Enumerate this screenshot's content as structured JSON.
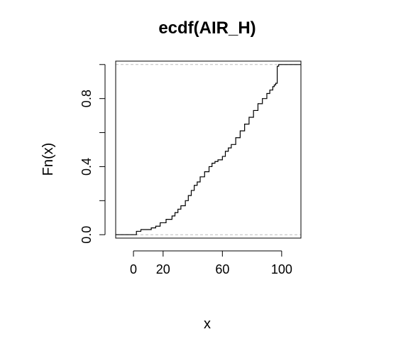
{
  "chart_data": {
    "type": "line",
    "title": "ecdf(AIR_H)",
    "xlabel": "x",
    "ylabel": "Fn(x)",
    "xlim": [
      -12,
      113
    ],
    "ylim": [
      -0.02,
      1.02
    ],
    "xticks": [
      0,
      20,
      60,
      100
    ],
    "xtick_labels": [
      "0",
      "20",
      "60",
      "100"
    ],
    "yticks": [
      0.0,
      0.2,
      0.4,
      0.6,
      0.8,
      1.0
    ],
    "ytick_labels": [
      "0.0",
      "",
      "0.4",
      "",
      "0.8",
      ""
    ],
    "hlines": [
      0,
      1
    ],
    "grid": false,
    "legend": "none",
    "line_color": "#000000",
    "hline_color": "#bebebe",
    "series": [
      {
        "x": [
          0,
          2,
          5,
          12,
          15,
          18,
          22,
          26,
          28,
          30,
          32,
          35,
          37,
          39,
          41,
          43,
          45,
          48,
          51,
          53,
          55,
          57,
          60,
          62,
          64,
          66,
          69,
          72,
          75,
          78,
          81,
          84,
          87,
          90,
          92,
          94,
          95,
          96,
          97,
          98,
          110
        ],
        "y": [
          0.0,
          0.02,
          0.03,
          0.04,
          0.05,
          0.07,
          0.09,
          0.11,
          0.13,
          0.15,
          0.17,
          0.2,
          0.23,
          0.26,
          0.29,
          0.31,
          0.34,
          0.37,
          0.4,
          0.42,
          0.43,
          0.44,
          0.46,
          0.49,
          0.51,
          0.53,
          0.57,
          0.61,
          0.65,
          0.69,
          0.73,
          0.77,
          0.8,
          0.83,
          0.85,
          0.87,
          0.88,
          0.89,
          0.99,
          1.0,
          1.0
        ]
      }
    ]
  }
}
